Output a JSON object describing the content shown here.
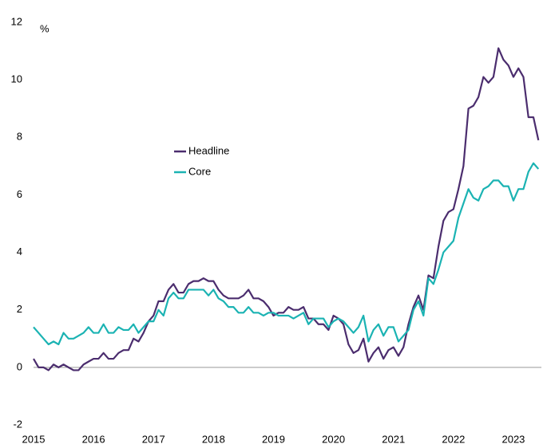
{
  "chart_data": {
    "type": "line",
    "y_label": "%",
    "categories": [
      "2015",
      null,
      null,
      null,
      null,
      null,
      null,
      null,
      null,
      null,
      null,
      null,
      "2016",
      null,
      null,
      null,
      null,
      null,
      null,
      null,
      null,
      null,
      null,
      null,
      "2017",
      null,
      null,
      null,
      null,
      null,
      null,
      null,
      null,
      null,
      null,
      null,
      "2018",
      null,
      null,
      null,
      null,
      null,
      null,
      null,
      null,
      null,
      null,
      null,
      "2019",
      null,
      null,
      null,
      null,
      null,
      null,
      null,
      null,
      null,
      null,
      null,
      "2020",
      null,
      null,
      null,
      null,
      null,
      null,
      null,
      null,
      null,
      null,
      null,
      "2021",
      null,
      null,
      null,
      null,
      null,
      null,
      null,
      null,
      null,
      null,
      null,
      "2022",
      null,
      null,
      null,
      null,
      null,
      null,
      null,
      null,
      null,
      null,
      null,
      "2023",
      null,
      null,
      null,
      null,
      null
    ],
    "series": [
      {
        "name": "Headline",
        "color": "#4b2d6e",
        "values": [
          0.3,
          0.0,
          0.0,
          -0.1,
          0.1,
          0.0,
          0.1,
          0.0,
          -0.1,
          -0.1,
          0.1,
          0.2,
          0.3,
          0.3,
          0.5,
          0.3,
          0.3,
          0.5,
          0.6,
          0.6,
          1.0,
          0.9,
          1.2,
          1.6,
          1.8,
          2.3,
          2.3,
          2.7,
          2.9,
          2.6,
          2.6,
          2.9,
          3.0,
          3.0,
          3.1,
          3.0,
          3.0,
          2.7,
          2.5,
          2.4,
          2.4,
          2.4,
          2.5,
          2.7,
          2.4,
          2.4,
          2.3,
          2.1,
          1.8,
          1.9,
          1.9,
          2.1,
          2.0,
          2.0,
          2.1,
          1.7,
          1.7,
          1.5,
          1.5,
          1.3,
          1.8,
          1.7,
          1.5,
          0.8,
          0.5,
          0.6,
          1.0,
          0.2,
          0.5,
          0.7,
          0.3,
          0.6,
          0.7,
          0.4,
          0.7,
          1.5,
          2.1,
          2.5,
          2.0,
          3.2,
          3.1,
          4.2,
          5.1,
          5.4,
          5.5,
          6.2,
          7.0,
          9.0,
          9.1,
          9.4,
          10.1,
          9.9,
          10.1,
          11.1,
          10.7,
          10.5,
          10.1,
          10.4,
          10.1,
          8.7,
          8.7,
          7.9
        ]
      },
      {
        "name": "Core",
        "color": "#1bb3b3",
        "values": [
          1.4,
          1.2,
          1.0,
          0.8,
          0.9,
          0.8,
          1.2,
          1.0,
          1.0,
          1.1,
          1.2,
          1.4,
          1.2,
          1.2,
          1.5,
          1.2,
          1.2,
          1.4,
          1.3,
          1.3,
          1.5,
          1.2,
          1.4,
          1.6,
          1.6,
          2.0,
          1.8,
          2.4,
          2.6,
          2.4,
          2.4,
          2.7,
          2.7,
          2.7,
          2.7,
          2.5,
          2.7,
          2.4,
          2.3,
          2.1,
          2.1,
          1.9,
          1.9,
          2.1,
          1.9,
          1.9,
          1.8,
          1.9,
          1.9,
          1.8,
          1.8,
          1.8,
          1.7,
          1.8,
          1.9,
          1.5,
          1.7,
          1.7,
          1.7,
          1.4,
          1.6,
          1.7,
          1.6,
          1.4,
          1.2,
          1.4,
          1.8,
          0.9,
          1.3,
          1.5,
          1.1,
          1.4,
          1.4,
          0.9,
          1.1,
          1.3,
          2.0,
          2.3,
          1.8,
          3.1,
          2.9,
          3.4,
          4.0,
          4.2,
          4.4,
          5.2,
          5.7,
          6.2,
          5.9,
          5.8,
          6.2,
          6.3,
          6.5,
          6.5,
          6.3,
          6.3,
          5.8,
          6.2,
          6.2,
          6.8,
          7.1,
          6.9
        ]
      }
    ],
    "ylim": [
      -2,
      12
    ],
    "yticks": [
      -2,
      0,
      2,
      4,
      6,
      8,
      10,
      12
    ],
    "grid": false
  }
}
